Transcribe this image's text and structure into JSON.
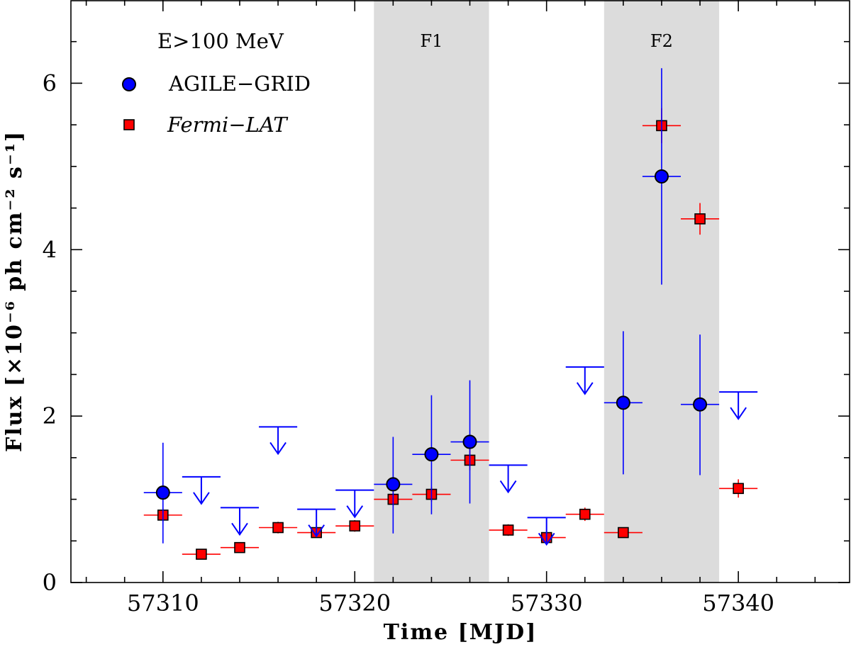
{
  "chart_data": {
    "type": "scatter",
    "xlabel": "Time [MJD]",
    "ylabel": "Flux [×10⁻⁶ ph cm⁻² s⁻¹]",
    "xlim": [
      57305.2,
      57345.8
    ],
    "ylim": [
      0,
      7
    ],
    "x_ticks": [
      57310,
      57320,
      57330,
      57340
    ],
    "y_ticks": [
      0,
      2,
      4,
      6
    ],
    "grid": false,
    "legend": {
      "placement": "top-left",
      "title": "E>100 MeV",
      "entries": [
        "AGILE−GRID",
        "Fermi−LAT"
      ]
    },
    "regions": [
      {
        "label": "F1",
        "x_start": 57321,
        "x_end": 57327,
        "color": "#dcdcdc"
      },
      {
        "label": "F2",
        "x_start": 57333,
        "x_end": 57339,
        "color": "#dcdcdc"
      }
    ],
    "series": [
      {
        "name": "AGILE−GRID",
        "color": "#0000ff",
        "marker": "circle",
        "points": [
          {
            "x": 57310,
            "y": 1.08,
            "xerr": 1.0,
            "ylo": 0.47,
            "yhi": 1.68
          },
          {
            "x": 57322,
            "y": 1.18,
            "xerr": 1.0,
            "ylo": 0.59,
            "yhi": 1.75
          },
          {
            "x": 57324,
            "y": 1.54,
            "xerr": 1.0,
            "ylo": 0.82,
            "yhi": 2.25
          },
          {
            "x": 57326,
            "y": 1.69,
            "xerr": 1.0,
            "ylo": 0.95,
            "yhi": 2.43
          },
          {
            "x": 57334,
            "y": 2.16,
            "xerr": 1.0,
            "ylo": 1.3,
            "yhi": 3.02
          },
          {
            "x": 57336,
            "y": 4.88,
            "xerr": 1.0,
            "ylo": 3.58,
            "yhi": 6.18
          },
          {
            "x": 57338,
            "y": 2.14,
            "xerr": 1.0,
            "ylo": 1.29,
            "yhi": 2.98
          }
        ],
        "upper_limits": [
          {
            "x": 57312,
            "y": 1.27,
            "xerr": 1.0
          },
          {
            "x": 57314,
            "y": 0.9,
            "xerr": 1.0
          },
          {
            "x": 57316,
            "y": 1.87,
            "xerr": 1.0
          },
          {
            "x": 57318,
            "y": 0.88,
            "xerr": 1.0
          },
          {
            "x": 57320,
            "y": 1.11,
            "xerr": 1.0
          },
          {
            "x": 57328,
            "y": 1.41,
            "xerr": 1.0
          },
          {
            "x": 57330,
            "y": 0.78,
            "xerr": 1.0
          },
          {
            "x": 57332,
            "y": 2.59,
            "xerr": 1.0
          },
          {
            "x": 57340,
            "y": 2.29,
            "xerr": 1.0
          }
        ]
      },
      {
        "name": "Fermi−LAT",
        "color": "#ff0000",
        "marker": "square",
        "points": [
          {
            "x": 57310,
            "y": 0.81,
            "xerr": 1.0,
            "ylo": 0.73,
            "yhi": 0.89
          },
          {
            "x": 57312,
            "y": 0.34,
            "xerr": 1.0,
            "ylo": 0.29,
            "yhi": 0.39
          },
          {
            "x": 57314,
            "y": 0.42,
            "xerr": 1.0,
            "ylo": 0.37,
            "yhi": 0.48
          },
          {
            "x": 57316,
            "y": 0.66,
            "xerr": 1.0,
            "ylo": 0.59,
            "yhi": 0.73
          },
          {
            "x": 57318,
            "y": 0.6,
            "xerr": 1.0,
            "ylo": 0.54,
            "yhi": 0.67
          },
          {
            "x": 57320,
            "y": 0.68,
            "xerr": 1.0,
            "ylo": 0.61,
            "yhi": 0.75
          },
          {
            "x": 57322,
            "y": 1.0,
            "xerr": 1.0,
            "ylo": 0.92,
            "yhi": 1.08
          },
          {
            "x": 57324,
            "y": 1.06,
            "xerr": 1.0,
            "ylo": 0.97,
            "yhi": 1.15
          },
          {
            "x": 57326,
            "y": 1.47,
            "xerr": 1.0,
            "ylo": 1.35,
            "yhi": 1.6
          },
          {
            "x": 57328,
            "y": 0.63,
            "xerr": 1.0,
            "ylo": 0.56,
            "yhi": 0.7
          },
          {
            "x": 57330,
            "y": 0.54,
            "xerr": 1.0,
            "ylo": 0.48,
            "yhi": 0.6
          },
          {
            "x": 57332,
            "y": 0.82,
            "xerr": 1.0,
            "ylo": 0.74,
            "yhi": 0.9
          },
          {
            "x": 57334,
            "y": 0.6,
            "xerr": 1.0,
            "ylo": 0.54,
            "yhi": 0.66
          },
          {
            "x": 57336,
            "y": 5.49,
            "xerr": 1.0,
            "ylo": 5.28,
            "yhi": 5.7
          },
          {
            "x": 57338,
            "y": 4.37,
            "xerr": 1.0,
            "ylo": 4.18,
            "yhi": 4.56
          },
          {
            "x": 57340,
            "y": 1.13,
            "xerr": 1.0,
            "ylo": 1.02,
            "yhi": 1.24
          }
        ]
      }
    ]
  }
}
